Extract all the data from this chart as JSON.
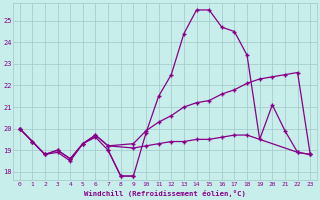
{
  "xlabel": "Windchill (Refroidissement éolien,°C)",
  "xlim": [
    -0.5,
    23.5
  ],
  "ylim": [
    17.6,
    25.8
  ],
  "yticks": [
    18,
    19,
    20,
    21,
    22,
    23,
    24,
    25
  ],
  "xticks": [
    0,
    1,
    2,
    3,
    4,
    5,
    6,
    7,
    8,
    9,
    10,
    11,
    12,
    13,
    14,
    15,
    16,
    17,
    18,
    19,
    20,
    21,
    22,
    23
  ],
  "bg_color": "#c8eeec",
  "grid_color": "#a0c8c8",
  "line_color": "#880088",
  "line1_x": [
    0,
    1,
    2,
    3,
    4,
    5,
    6,
    7,
    8,
    9,
    10,
    11,
    12,
    13,
    14,
    15,
    16,
    17,
    18,
    19,
    20,
    21,
    22,
    23
  ],
  "line1_y": [
    20.0,
    19.4,
    18.8,
    18.9,
    18.5,
    19.3,
    19.6,
    19.0,
    17.8,
    17.8,
    19.8,
    21.5,
    22.5,
    24.4,
    25.5,
    25.5,
    24.7,
    24.5,
    23.4,
    19.5,
    21.1,
    19.9,
    18.9,
    18.8
  ],
  "line2_x": [
    0,
    1,
    2,
    3,
    4,
    5,
    6,
    7,
    9,
    10,
    11,
    12,
    13,
    14,
    15,
    16,
    17,
    18,
    19,
    20,
    21,
    22,
    23
  ],
  "line2_y": [
    20.0,
    19.4,
    18.8,
    19.0,
    18.6,
    19.3,
    19.7,
    19.2,
    19.3,
    19.9,
    20.3,
    20.6,
    21.0,
    21.2,
    21.3,
    21.6,
    21.8,
    22.1,
    22.3,
    22.4,
    22.5,
    22.6,
    18.8
  ],
  "line3_x": [
    0,
    1,
    2,
    3,
    4,
    5,
    6,
    7,
    9,
    10,
    11,
    12,
    13,
    14,
    15,
    16,
    17,
    18,
    22,
    23
  ],
  "line3_y": [
    20.0,
    19.4,
    18.8,
    19.0,
    18.6,
    19.3,
    19.7,
    19.2,
    19.1,
    19.2,
    19.3,
    19.4,
    19.4,
    19.5,
    19.5,
    19.6,
    19.7,
    19.7,
    18.9,
    18.8
  ],
  "line4_x": [
    7,
    8,
    9
  ],
  "line4_y": [
    19.0,
    17.8,
    17.8
  ]
}
